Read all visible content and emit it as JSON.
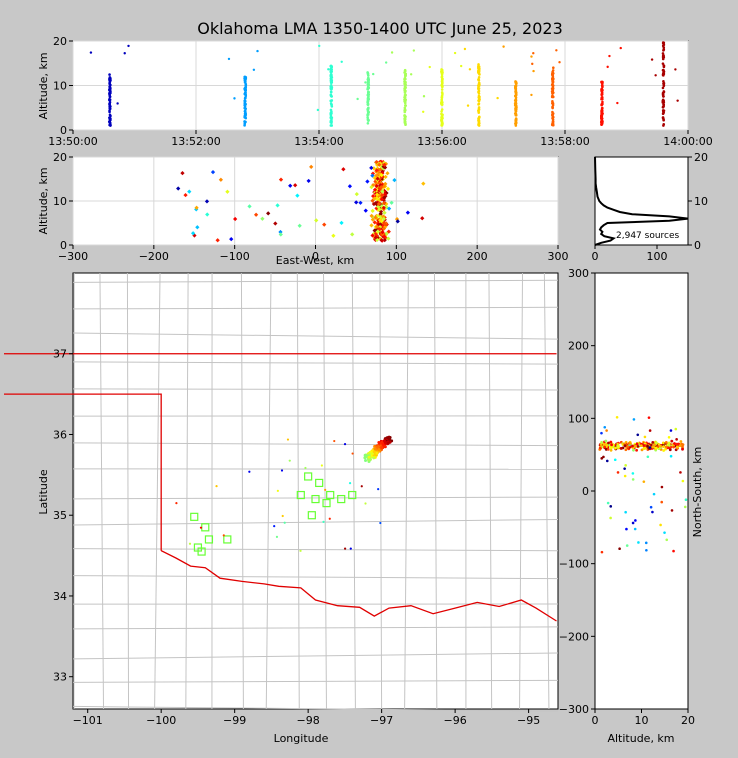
{
  "chart_data": {
    "type": "scatter",
    "title": "Oklahoma LMA 1350-1400 UTC June 25, 2023",
    "colormap": "jet (time-coded, early=blue, late=red)",
    "grid": true,
    "panels": [
      {
        "id": "time-altitude",
        "type": "scatter",
        "xlabel": "",
        "ylabel": "Altitude, km",
        "x_ticks": [
          "13:50:00",
          "13:52:00",
          "13:54:00",
          "13:56:00",
          "13:58:00",
          "14:00:00"
        ],
        "y_ticks": [
          "0",
          "10",
          "20"
        ],
        "ylim": [
          0,
          20
        ],
        "time_range": [
          "13:50:00",
          "14:00:00"
        ],
        "flash_clusters": [
          {
            "time": "13:50:36",
            "alt_range": [
              1,
              12.5
            ]
          },
          {
            "time": "13:52:48",
            "alt_range": [
              1,
              12
            ]
          },
          {
            "time": "13:54:12",
            "alt_range": [
              1,
              15
            ]
          },
          {
            "time": "13:54:48",
            "alt_range": [
              1,
              13
            ]
          },
          {
            "time": "13:55:24",
            "alt_range": [
              1,
              13.5
            ]
          },
          {
            "time": "13:56:00",
            "alt_range": [
              1,
              14
            ]
          },
          {
            "time": "13:56:36",
            "alt_range": [
              1,
              15
            ]
          },
          {
            "time": "13:57:12",
            "alt_range": [
              1,
              11
            ]
          },
          {
            "time": "13:57:48",
            "alt_range": [
              1,
              14
            ]
          },
          {
            "time": "13:58:36",
            "alt_range": [
              1,
              11
            ]
          },
          {
            "time": "13:59:36",
            "alt_range": [
              1,
              20
            ]
          }
        ]
      },
      {
        "id": "east-west-altitude",
        "type": "scatter",
        "xlabel": "East-West, km",
        "ylabel": "Altitude, km",
        "x_ticks": [
          "−300",
          "−200",
          "−100",
          "0",
          "100",
          "200",
          "300"
        ],
        "y_ticks": [
          "0",
          "10",
          "20"
        ],
        "xlim": [
          -300,
          300
        ],
        "ylim": [
          0,
          20
        ]
      },
      {
        "id": "altitude-histogram",
        "type": "line",
        "x_ticks": [
          "0",
          "100"
        ],
        "y_ticks": [
          "0",
          "10",
          "20"
        ],
        "xlim": [
          0,
          150
        ],
        "ylim": [
          0,
          20
        ],
        "annotation": "2,947 sources",
        "profile": [
          [
            0,
            0
          ],
          [
            10,
            0.5
          ],
          [
            25,
            1
          ],
          [
            30,
            1.5
          ],
          [
            15,
            2
          ],
          [
            10,
            2.5
          ],
          [
            12,
            3
          ],
          [
            8,
            3.5
          ],
          [
            10,
            4
          ],
          [
            14,
            4.5
          ],
          [
            20,
            5
          ],
          [
            60,
            5.2
          ],
          [
            120,
            5.5
          ],
          [
            150,
            6
          ],
          [
            120,
            6.5
          ],
          [
            60,
            7
          ],
          [
            40,
            7.5
          ],
          [
            30,
            8
          ],
          [
            20,
            8.5
          ],
          [
            14,
            9
          ],
          [
            10,
            9.5
          ],
          [
            7,
            10
          ],
          [
            4,
            11
          ],
          [
            3,
            12
          ],
          [
            2,
            13
          ],
          [
            1,
            14
          ],
          [
            1,
            15
          ],
          [
            0.5,
            17
          ],
          [
            0,
            20
          ]
        ]
      },
      {
        "id": "plan-view",
        "type": "scatter",
        "xlabel": "Longitude",
        "ylabel": "Latitude",
        "x_ticks": [
          "−101",
          "−100",
          "−99",
          "−98",
          "−97",
          "−96",
          "−95"
        ],
        "y_ticks": [
          "33",
          "34",
          "35",
          "36",
          "37"
        ],
        "xlim": [
          -101.2,
          -94.6
        ],
        "ylim": [
          32.6,
          38.0
        ],
        "stations_lonlat": [
          [
            -99.55,
            34.98
          ],
          [
            -99.5,
            34.6
          ],
          [
            -99.4,
            34.85
          ],
          [
            -99.35,
            34.7
          ],
          [
            -99.1,
            34.7
          ],
          [
            -98.0,
            35.48
          ],
          [
            -97.85,
            35.4
          ],
          [
            -97.75,
            35.15
          ],
          [
            -97.7,
            35.25
          ],
          [
            -97.55,
            35.2
          ],
          [
            -97.4,
            35.25
          ],
          [
            -97.9,
            35.2
          ],
          [
            -98.1,
            35.25
          ],
          [
            -97.95,
            35.0
          ],
          [
            -99.45,
            34.55
          ]
        ],
        "core_lonlat": [
          [
            -97.2,
            35.7
          ],
          [
            -96.9,
            35.95
          ]
        ]
      },
      {
        "id": "altitude-north-south",
        "type": "scatter",
        "xlabel": "Altitude, km",
        "ylabel": "North-South, km",
        "x_ticks": [
          "0",
          "10",
          "20"
        ],
        "y_ticks": [
          "−300",
          "−200",
          "−100",
          "0",
          "100",
          "200",
          "300"
        ],
        "xlim": [
          0,
          20
        ],
        "ylim": [
          -300,
          300
        ]
      }
    ]
  }
}
